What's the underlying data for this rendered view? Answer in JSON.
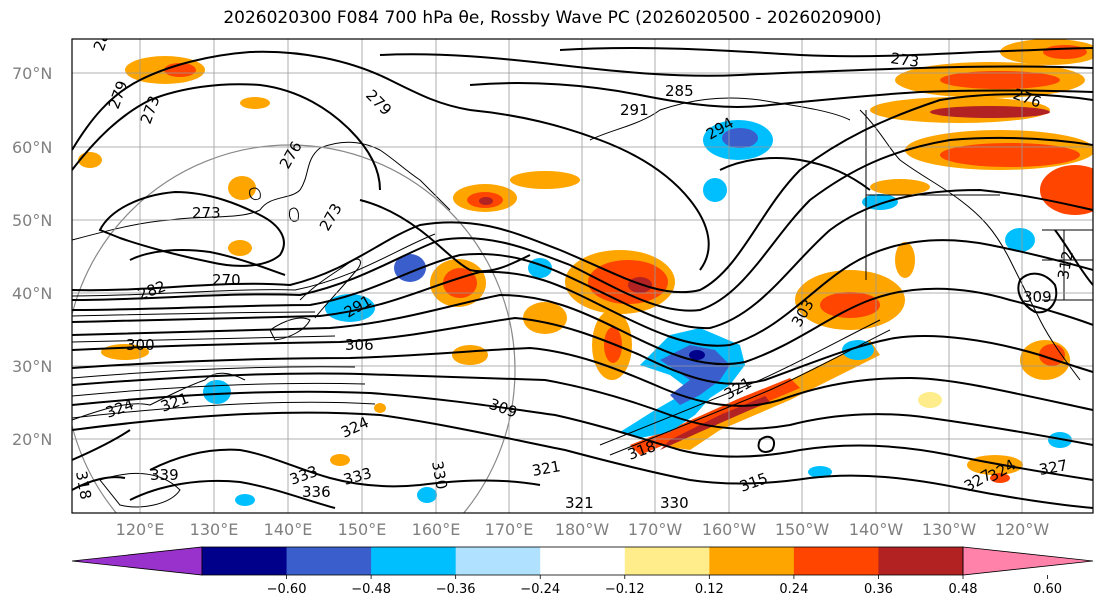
{
  "title": "2026020300 F084 700 hPa θe, Rossby Wave PC (2026020500 - 2026020900)",
  "lat_ticks": [
    "70°N",
    "60°N",
    "50°N",
    "40°N",
    "30°N",
    "20°N"
  ],
  "lon_ticks": [
    "120°E",
    "130°E",
    "140°E",
    "150°E",
    "160°E",
    "170°E",
    "180°W",
    "170°W",
    "160°W",
    "150°W",
    "140°W",
    "130°W",
    "120°W"
  ],
  "colorbar": {
    "colors": [
      "#9932cc",
      "#00008b",
      "#3a5fcd",
      "#00bfff",
      "#b0e2ff",
      "#ffffff",
      "#ffec8b",
      "#ffa500",
      "#ff4500",
      "#b22222",
      "#ff82ab"
    ],
    "labels": [
      "−0.60",
      "−0.48",
      "−0.36",
      "−0.24",
      "−0.12",
      "0.12",
      "0.24",
      "0.36",
      "0.48",
      "0.60"
    ]
  },
  "contour_labels": [
    "279",
    "285",
    "273",
    "276",
    "273",
    "279",
    "285",
    "291",
    "294",
    "273",
    "276",
    "270",
    "273",
    "282",
    "300",
    "291",
    "306",
    "309",
    "303",
    "309",
    "312",
    "321",
    "324",
    "327",
    "318",
    "324",
    "321",
    "339",
    "336",
    "333",
    "333",
    "330",
    "318",
    "321",
    "321",
    "330",
    "315",
    "324",
    "327"
  ]
}
